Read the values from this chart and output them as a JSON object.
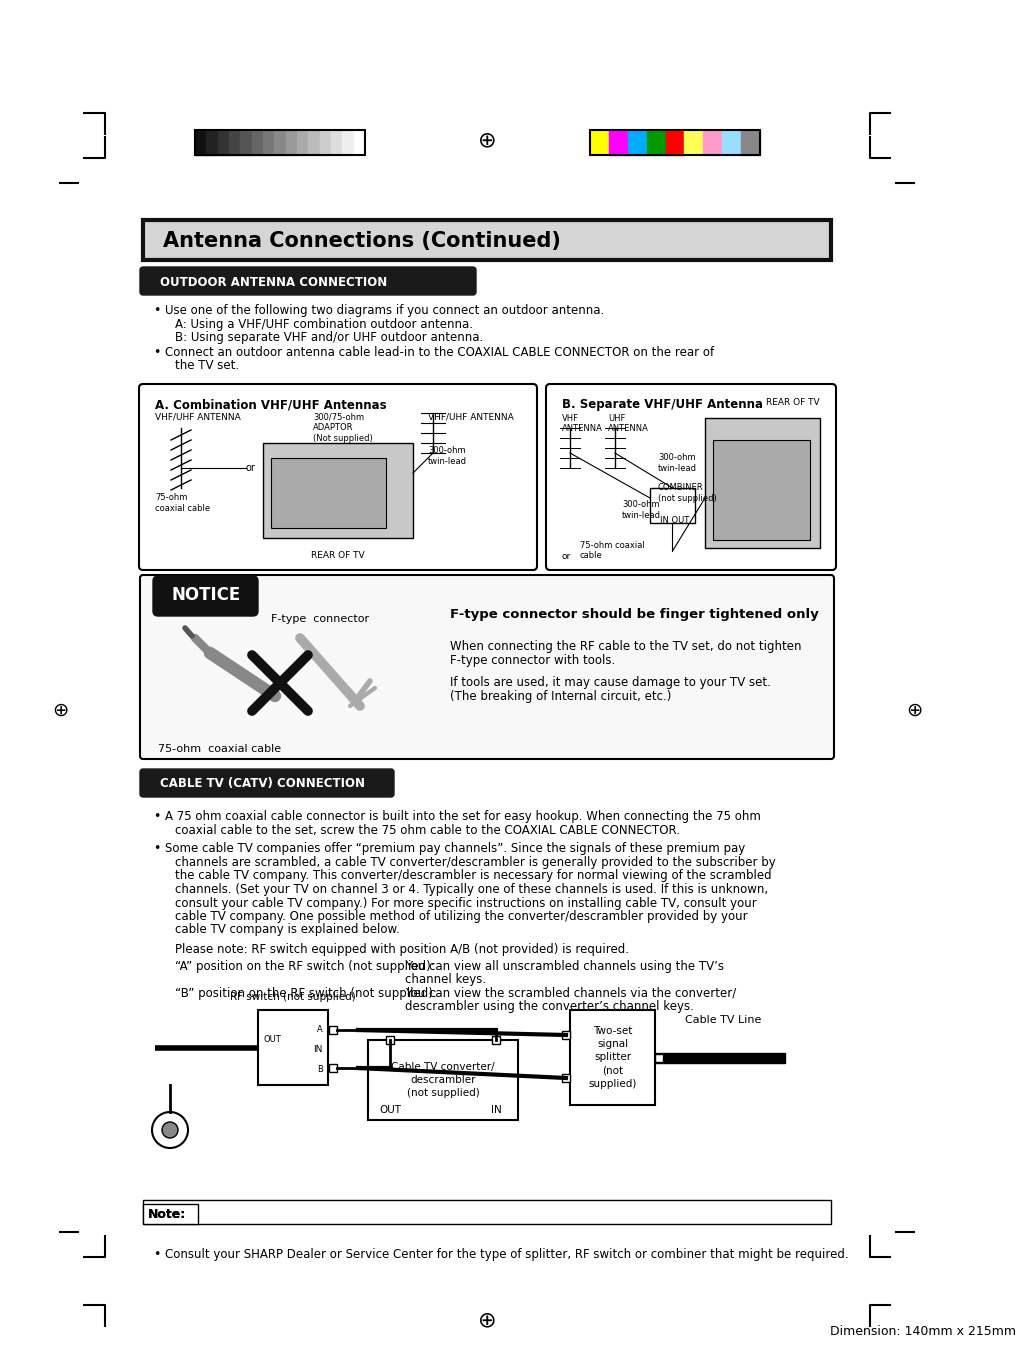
{
  "page_title": "Antenna Connections (Continued)",
  "outdoor_section_title": "OUTDOOR ANTENNA CONNECTION",
  "cable_section_title": "CABLE TV (CATV) CONNECTION",
  "notice_title": "NOTICE",
  "notice_heading": "F-type connector should be finger tightened only",
  "notice_connector_label": "F-type  connector",
  "notice_cable_label": "75-ohm  coaxial cable",
  "notice_text1": "When connecting the RF cable to the TV set, do not tighten",
  "notice_text2": "F-type connector with tools.",
  "notice_text3": "If tools are used, it may cause damage to your TV set.",
  "notice_text4": "(The breaking of Internal circuit, etc.)",
  "outdoor_bullet1": "Use one of the following two diagrams if you connect an outdoor antenna.",
  "outdoor_bullet1a": "A: Using a VHF/UHF combination outdoor antenna.",
  "outdoor_bullet1b": "B: Using separate VHF and/or UHF outdoor antenna.",
  "outdoor_bullet2": "Connect an outdoor antenna cable lead-in to the COAXIAL CABLE CONNECTOR on the rear of",
  "outdoor_bullet2b": "the TV set.",
  "diagram_a_title": "A. Combination VHF/UHF Antennas",
  "diagram_b_title": "B. Separate VHF/UHF Antenna",
  "cable_bullet1": "A 75 ohm coaxial cable connector is built into the set for easy hookup. When connecting the 75 ohm",
  "cable_bullet1b": "coaxial cable to the set, screw the 75 ohm cable to the COAXIAL CABLE CONNECTOR.",
  "cable_bullet2": "Some cable TV companies offer “premium pay channels”. Since the signals of these premium pay",
  "cable_bullet2b": "channels are scrambled, a cable TV converter/descrambler is generally provided to the subscriber by",
  "cable_bullet2c": "the cable TV company. This converter/descrambler is necessary for normal viewing of the scrambled",
  "cable_bullet2d": "channels. (Set your TV on channel 3 or 4. Typically one of these channels is used. If this is unknown,",
  "cable_bullet2e": "consult your cable TV company.) For more specific instructions on installing cable TV, consult your",
  "cable_bullet2f": "cable TV company. One possible method of utilizing the converter/descrambler provided by your",
  "cable_bullet2g": "cable TV company is explained below.",
  "switch_note_a": "Please note: RF switch equipped with position A/B (not provided) is required.",
  "pos_a_label": "“A” position on the RF switch (not supplied):",
  "pos_a_text1": "You can view all unscrambled channels using the TV’s",
  "pos_a_text2": "channel keys.",
  "pos_b_label": "“B” position on the RF switch (not supplied):",
  "pos_b_text1": "You can view the scrambled channels via the converter/",
  "pos_b_text2": "descrambler using the converter’s channel keys.",
  "rf_switch_label": "RF switch (not supplied)",
  "two_set_label": "Two-set\nsignal\nsplitter\n(not\nsupplied)",
  "cable_tv_line": "Cable TV Line",
  "cable_box_label": "Cable TV converter/\ndescrambler\n(not supplied)",
  "out_label": "OUT",
  "in_label": "IN",
  "note_label": "Note:",
  "note_bullet": "Consult your SHARP Dealer or Service Center for the type of splitter, RF switch or combiner that might be required.",
  "dimension_text": "Dimension: 140mm x 215mm",
  "bg_color": "#ffffff",
  "section_bg_color": "#1a1a1a",
  "section_text_color": "#ffffff",
  "color_bar_left": [
    "#111111",
    "#222222",
    "#333333",
    "#444444",
    "#555555",
    "#666666",
    "#777777",
    "#888888",
    "#999999",
    "#aaaaaa",
    "#bbbbbb",
    "#cccccc",
    "#dddddd",
    "#eeeeee",
    "#ffffff"
  ],
  "color_bar_right": [
    "#ffff00",
    "#ff00ff",
    "#00aaff",
    "#009900",
    "#ff0000",
    "#ffff55",
    "#ff99cc",
    "#99ddff",
    "#888888"
  ]
}
